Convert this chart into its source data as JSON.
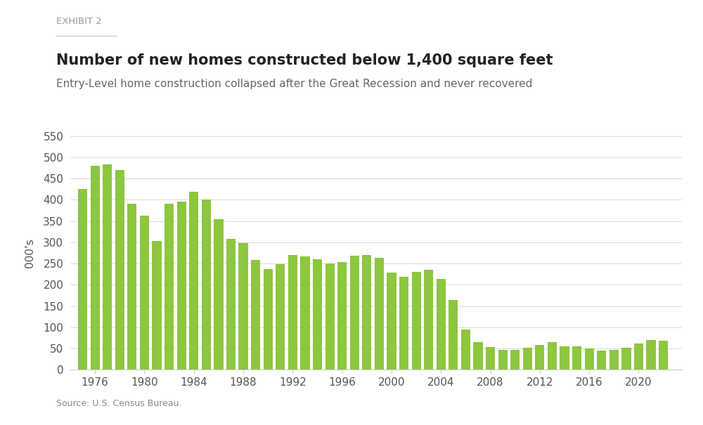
{
  "exhibit_label": "EXHIBIT 2",
  "title": "Number of new homes constructed below 1,400 square feet",
  "subtitle": "Entry-Level home construction collapsed after the Great Recession and never recovered",
  "source": "Source: U.S. Census Bureau.",
  "ylabel": "000’s",
  "background_color": "#ffffff",
  "bar_color": "#8dc63f",
  "years": [
    1975,
    1976,
    1977,
    1978,
    1979,
    1980,
    1981,
    1982,
    1983,
    1984,
    1985,
    1986,
    1987,
    1988,
    1989,
    1990,
    1991,
    1992,
    1993,
    1994,
    1995,
    1996,
    1997,
    1998,
    1999,
    2000,
    2001,
    2002,
    2003,
    2004,
    2005,
    2006,
    2007,
    2008,
    2009,
    2010,
    2011,
    2012,
    2013,
    2014,
    2015,
    2016,
    2017,
    2018,
    2019,
    2020,
    2021,
    2022
  ],
  "values": [
    425,
    480,
    483,
    470,
    390,
    363,
    303,
    390,
    395,
    418,
    400,
    355,
    308,
    298,
    258,
    237,
    248,
    270,
    267,
    260,
    250,
    253,
    268,
    270,
    263,
    228,
    218,
    230,
    235,
    213,
    165,
    95,
    65,
    53,
    47,
    47,
    51,
    58,
    65,
    55,
    55,
    50,
    45,
    47,
    52,
    62,
    70,
    68
  ],
  "ylim": [
    0,
    550
  ],
  "yticks": [
    0,
    50,
    100,
    150,
    200,
    250,
    300,
    350,
    400,
    450,
    500,
    550
  ],
  "xtick_years": [
    1976,
    1980,
    1984,
    1988,
    1992,
    1996,
    2000,
    2004,
    2008,
    2012,
    2016,
    2020
  ]
}
